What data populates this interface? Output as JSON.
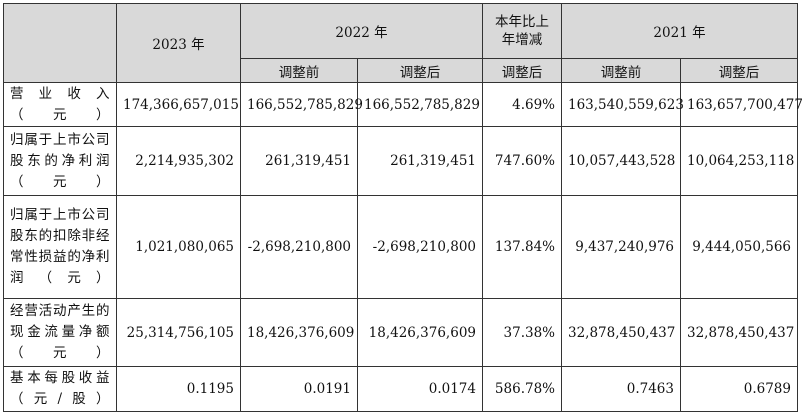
{
  "header": {
    "y2023": "2023 年",
    "y2022": "2022 年",
    "change": "本年比上年增减",
    "y2021": "2021 年",
    "before": "调整前",
    "after": "调整后"
  },
  "rows": [
    {
      "label": "营 业 收 入（元）",
      "v2023": "174,366,657,015",
      "v2022_before": "166,552,785,829",
      "v2022_after": "166,552,785,829",
      "change": "4.69%",
      "v2021_before": "163,540,559,623",
      "v2021_after": "163,657,700,477"
    },
    {
      "label": "归属于上市公司股东的净利润（元）",
      "v2023": "2,214,935,302",
      "v2022_before": "261,319,451",
      "v2022_after": "261,319,451",
      "change": "747.60%",
      "v2021_before": "10,057,443,528",
      "v2021_after": "10,064,253,118"
    },
    {
      "label": "归属于上市公司股东的扣除非经常性损益的净利润（元）",
      "v2023": "1,021,080,065",
      "v2022_before": "-2,698,210,800",
      "v2022_after": "-2,698,210,800",
      "change": "137.84%",
      "v2021_before": "9,437,240,976",
      "v2021_after": "9,444,050,566"
    },
    {
      "label": "经营活动产生的现金流量净额（元）",
      "v2023": "25,314,756,105",
      "v2022_before": "18,426,376,609",
      "v2022_after": "18,426,376,609",
      "change": "37.38%",
      "v2021_before": "32,878,450,437",
      "v2021_after": "32,878,450,437"
    },
    {
      "label": "基本每股收益（元/股）",
      "v2023": "0.1195",
      "v2022_before": "0.0191",
      "v2022_after": "0.0174",
      "change": "586.78%",
      "v2021_before": "0.7463",
      "v2021_after": "0.6789"
    }
  ]
}
